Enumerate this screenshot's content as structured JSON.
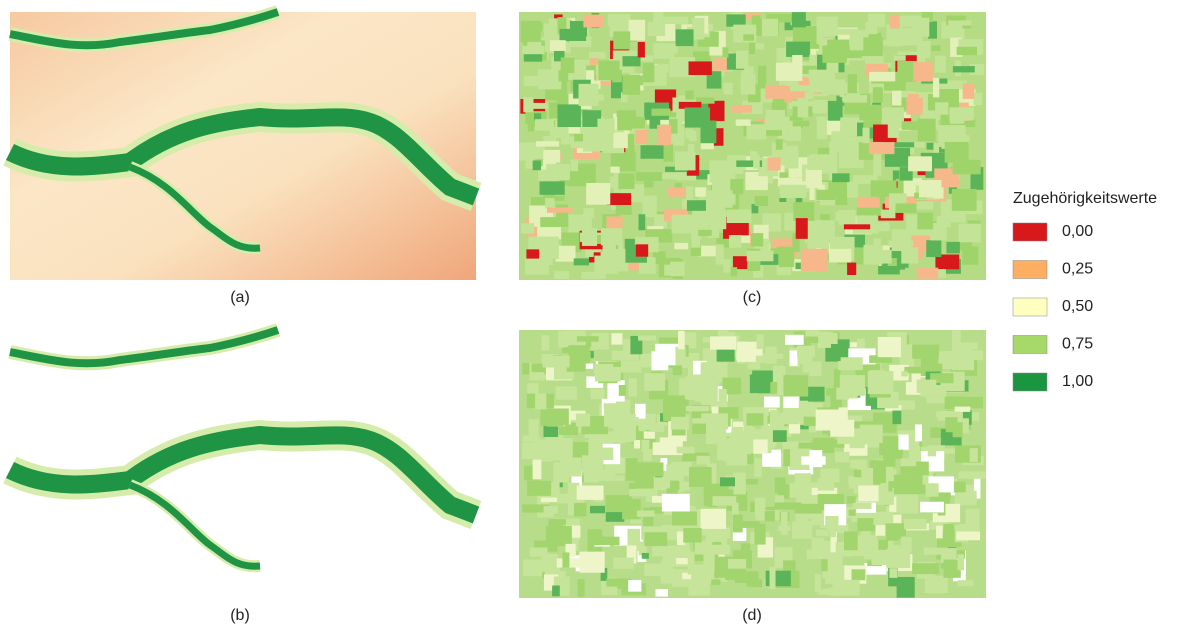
{
  "panels": [
    {
      "label": "(a)"
    },
    {
      "label": "(b)"
    },
    {
      "label": "(c)"
    },
    {
      "label": "(d)"
    }
  ],
  "legend": {
    "title": "Zugehörigkeitswerte",
    "items": [
      {
        "label": "0,00",
        "color": "#d7191c"
      },
      {
        "label": "0,25",
        "color": "#fdae61"
      },
      {
        "label": "0,50",
        "color": "#ffffbf"
      },
      {
        "label": "0,75",
        "color": "#a6d96a"
      },
      {
        "label": "1,00",
        "color": "#1a9641"
      }
    ]
  }
}
